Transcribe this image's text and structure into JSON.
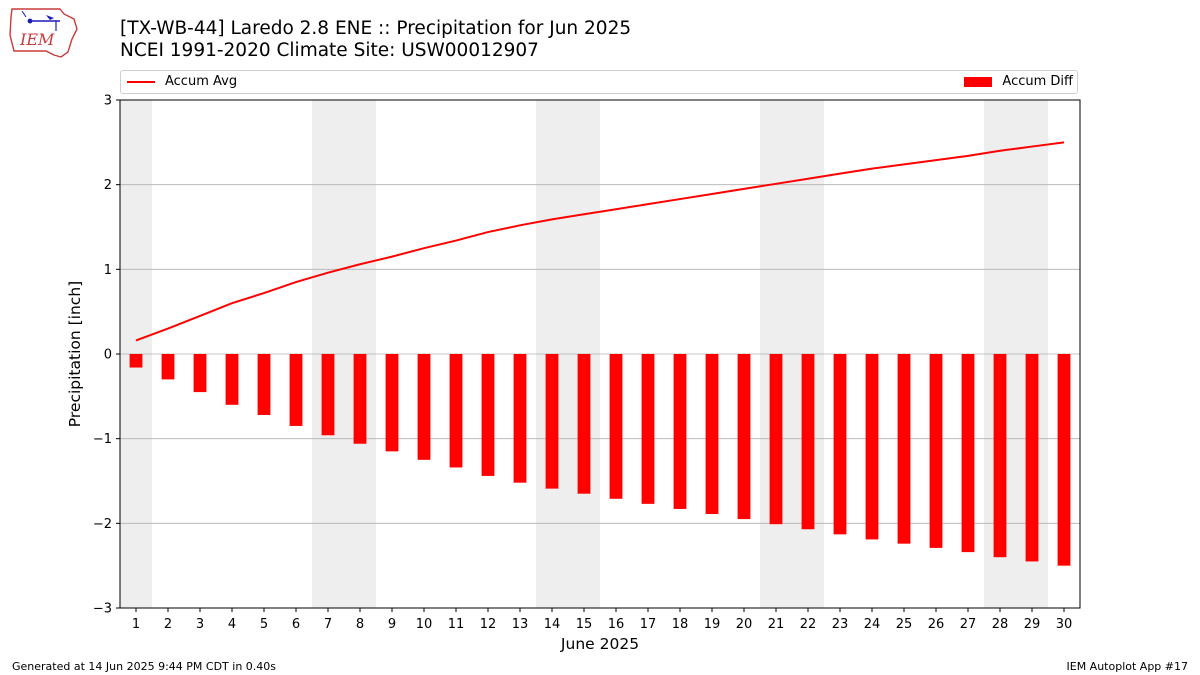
{
  "header": {
    "title_line1": "[TX-WB-44] Laredo 2.8 ENE :: Precipitation for Jun 2025",
    "title_line2": "NCEI 1991-2020 Climate Site: USW00012907",
    "logo_text": "IEM"
  },
  "footer": {
    "left": "Generated at 14 Jun 2025 9:44 PM CDT in 0.40s",
    "right": "IEM Autoplot App #17"
  },
  "colors": {
    "series": "#ff0000",
    "weekend_shade": "#eeeeee",
    "grid": "#b0b0b0"
  },
  "chart_data": {
    "type": "bar",
    "xlabel": "June 2025",
    "ylabel": "Precipitation [inch]",
    "ylim": [
      -3,
      3
    ],
    "yticks": [
      -3,
      -2,
      -1,
      0,
      1,
      2,
      3
    ],
    "ytick_labels": [
      "−3",
      "−2",
      "−1",
      "0",
      "1",
      "2",
      "3"
    ],
    "grid": true,
    "legend": "top",
    "categories": [
      1,
      2,
      3,
      4,
      5,
      6,
      7,
      8,
      9,
      10,
      11,
      12,
      13,
      14,
      15,
      16,
      17,
      18,
      19,
      20,
      21,
      22,
      23,
      24,
      25,
      26,
      27,
      28,
      29,
      30
    ],
    "shaded_days": [
      [
        1,
        1
      ],
      [
        7,
        8
      ],
      [
        14,
        15
      ],
      [
        21,
        22
      ],
      [
        28,
        29
      ]
    ],
    "series": [
      {
        "name": "Accum Avg",
        "kind": "line",
        "values": [
          0.16,
          0.3,
          0.45,
          0.6,
          0.72,
          0.85,
          0.96,
          1.06,
          1.15,
          1.25,
          1.34,
          1.44,
          1.52,
          1.59,
          1.65,
          1.71,
          1.77,
          1.83,
          1.89,
          1.95,
          2.01,
          2.07,
          2.13,
          2.19,
          2.24,
          2.29,
          2.34,
          2.4,
          2.45,
          2.5
        ]
      },
      {
        "name": "Accum Diff",
        "kind": "bar",
        "values": [
          -0.16,
          -0.3,
          -0.45,
          -0.6,
          -0.72,
          -0.85,
          -0.96,
          -1.06,
          -1.15,
          -1.25,
          -1.34,
          -1.44,
          -1.52,
          -1.59,
          -1.65,
          -1.71,
          -1.77,
          -1.83,
          -1.89,
          -1.95,
          -2.01,
          -2.07,
          -2.13,
          -2.19,
          -2.24,
          -2.29,
          -2.34,
          -2.4,
          -2.45,
          -2.5
        ]
      }
    ]
  }
}
